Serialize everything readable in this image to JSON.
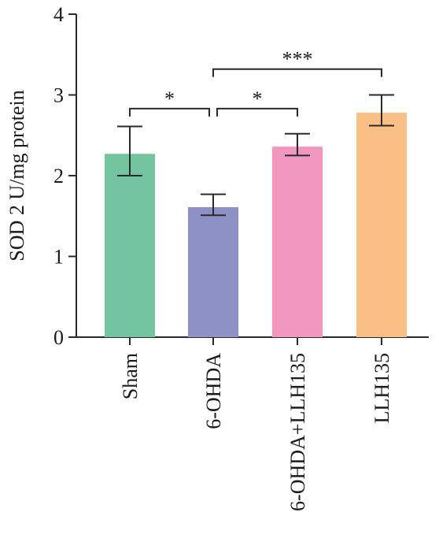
{
  "chart_data": {
    "type": "bar",
    "categories": [
      "Sham",
      "6-OHDA",
      "6-OHDA+LLH135",
      "LLH135"
    ],
    "values": [
      2.27,
      1.61,
      2.36,
      2.78
    ],
    "errors": [
      [
        2.0,
        2.61
      ],
      [
        1.51,
        1.77
      ],
      [
        2.25,
        2.52
      ],
      [
        2.62,
        3.0
      ]
    ],
    "bar_colors": [
      "#72C59E",
      "#8E91C6",
      "#F297C0",
      "#F9BF84"
    ],
    "ylabel": "SOD 2 U/mg protein",
    "xlabel": "",
    "title": "",
    "ylim": [
      0,
      4
    ],
    "yticks": [
      0,
      1,
      2,
      3,
      4
    ],
    "significance": [
      {
        "from": 0,
        "to": 1,
        "label": "*",
        "y": 2.83
      },
      {
        "from": 1,
        "to": 2,
        "label": "*",
        "y": 2.83
      },
      {
        "from": 1,
        "to": 3,
        "label": "***",
        "y": 3.32
      }
    ],
    "grid": false,
    "legend": "none"
  }
}
